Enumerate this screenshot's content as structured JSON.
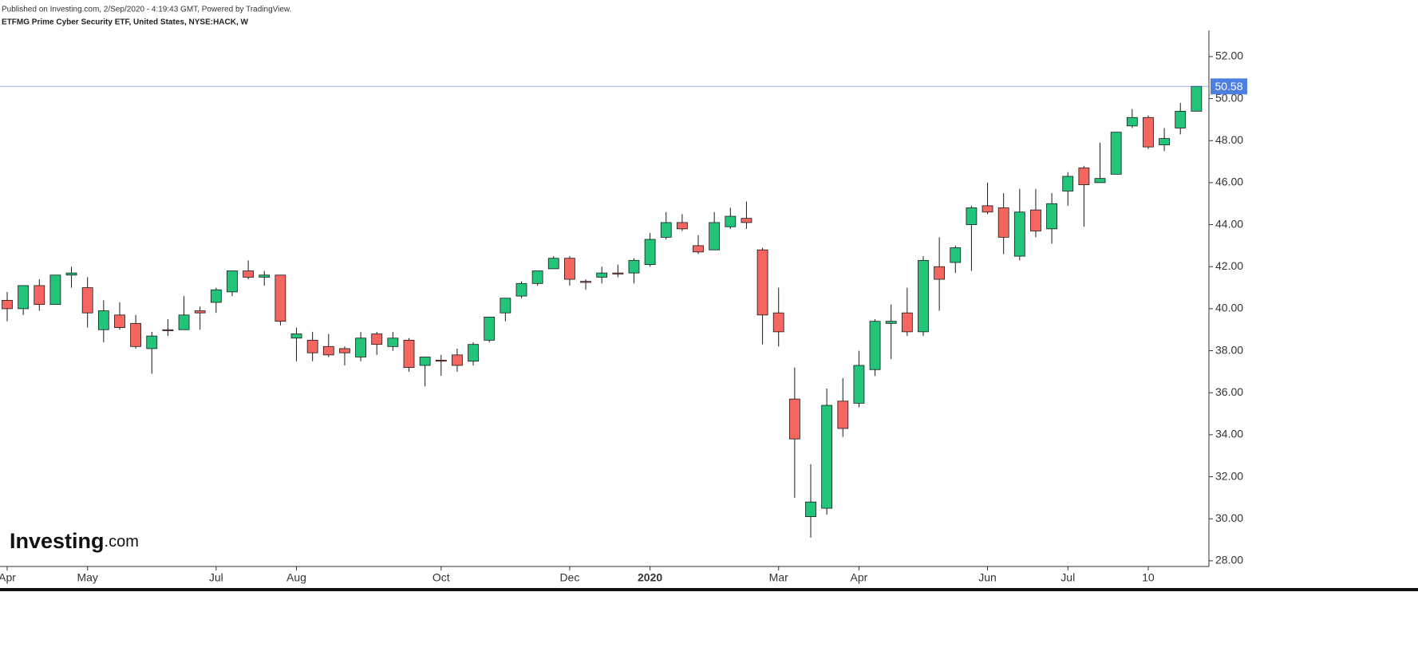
{
  "header": {
    "published": "Published on Investing.com, 2/Sep/2020 - 4:19:43 GMT, Powered by TradingView.",
    "symbol": "ETFMG Prime Cyber Security ETF, United States, NYSE:HACK, W"
  },
  "logo": {
    "name": "Investing",
    "suffix": ".com"
  },
  "chart_data": {
    "type": "candlestick",
    "categories": [
      "Apr",
      null,
      null,
      null,
      null,
      "May",
      null,
      null,
      null,
      null,
      null,
      null,
      null,
      "Jul",
      null,
      null,
      null,
      null,
      "Aug",
      null,
      null,
      null,
      null,
      null,
      null,
      null,
      null,
      "Oct",
      null,
      null,
      null,
      null,
      null,
      null,
      null,
      "Dec",
      null,
      null,
      null,
      null,
      "2020",
      null,
      null,
      null,
      null,
      null,
      null,
      null,
      "Mar",
      null,
      null,
      null,
      null,
      "Apr",
      null,
      null,
      null,
      null,
      null,
      null,
      null,
      "Jun",
      null,
      null,
      null,
      null,
      "Jul",
      null,
      null,
      null,
      null,
      "10",
      null,
      null,
      null
    ],
    "open": [
      40.4,
      40.0,
      41.1,
      40.2,
      41.6,
      41.0,
      39.0,
      39.7,
      39.3,
      38.1,
      39.0,
      39.0,
      39.9,
      40.3,
      40.8,
      41.8,
      41.5,
      41.6,
      38.6,
      38.5,
      38.2,
      38.1,
      37.7,
      38.8,
      38.2,
      38.5,
      37.3,
      37.55,
      37.8,
      37.5,
      38.5,
      39.8,
      40.6,
      41.2,
      41.9,
      42.4,
      41.3,
      41.5,
      41.7,
      41.7,
      42.1,
      43.4,
      44.1,
      43.0,
      42.8,
      43.9,
      44.3,
      42.8,
      39.8,
      35.7,
      30.1,
      30.5,
      35.6,
      35.5,
      37.1,
      39.3,
      39.8,
      38.9,
      42.0,
      42.2,
      44.0,
      44.9,
      44.8,
      42.5,
      44.7,
      43.8,
      45.6,
      46.7,
      46.0,
      46.4,
      48.7,
      49.1,
      47.8,
      48.6,
      49.4
    ],
    "high": [
      40.8,
      41.1,
      41.4,
      41.6,
      42.0,
      41.5,
      40.4,
      40.3,
      39.7,
      38.9,
      39.5,
      40.6,
      40.1,
      41.0,
      41.8,
      42.3,
      41.8,
      41.6,
      39.1,
      38.9,
      38.8,
      38.2,
      38.9,
      38.9,
      38.9,
      38.6,
      37.7,
      37.8,
      38.1,
      38.4,
      39.6,
      40.5,
      41.3,
      41.8,
      42.5,
      42.5,
      41.4,
      42.0,
      42.1,
      42.4,
      43.6,
      44.6,
      44.5,
      43.5,
      44.6,
      44.8,
      45.1,
      42.9,
      41.0,
      37.2,
      32.6,
      36.2,
      36.7,
      38.0,
      39.5,
      40.2,
      41.0,
      42.5,
      43.4,
      43.0,
      44.9,
      46.0,
      45.5,
      45.7,
      45.7,
      45.5,
      46.5,
      46.8,
      47.9,
      48.4,
      49.5,
      49.2,
      48.6,
      49.8,
      50.6
    ],
    "low": [
      39.4,
      39.7,
      39.9,
      40.2,
      41.0,
      39.1,
      38.4,
      39.0,
      38.1,
      36.9,
      38.7,
      39.0,
      39.0,
      39.8,
      40.6,
      41.4,
      41.1,
      39.2,
      37.5,
      37.5,
      37.7,
      37.3,
      37.5,
      37.8,
      38.0,
      37.0,
      36.3,
      36.8,
      37.0,
      37.3,
      38.4,
      39.4,
      40.5,
      41.1,
      41.9,
      41.1,
      40.9,
      41.2,
      41.5,
      41.2,
      42.0,
      43.3,
      43.7,
      42.6,
      42.8,
      43.8,
      43.8,
      38.3,
      38.2,
      31.0,
      29.1,
      30.2,
      33.9,
      35.3,
      36.8,
      37.6,
      38.7,
      38.7,
      39.9,
      41.7,
      41.8,
      44.5,
      42.6,
      42.3,
      43.4,
      43.1,
      44.9,
      43.9,
      46.0,
      46.4,
      48.6,
      47.6,
      47.5,
      48.3,
      49.4
    ],
    "close": [
      40.0,
      41.1,
      40.2,
      41.6,
      41.7,
      39.8,
      39.9,
      39.1,
      38.2,
      38.7,
      38.95,
      39.7,
      39.8,
      40.9,
      41.8,
      41.5,
      41.6,
      39.4,
      38.8,
      37.9,
      37.8,
      37.9,
      38.6,
      38.3,
      38.6,
      37.2,
      37.7,
      37.5,
      37.3,
      38.3,
      39.6,
      40.5,
      41.2,
      41.8,
      42.4,
      41.4,
      41.25,
      41.7,
      41.65,
      42.3,
      43.3,
      44.1,
      43.8,
      42.7,
      44.1,
      44.4,
      44.1,
      39.7,
      38.9,
      33.8,
      30.8,
      35.4,
      34.3,
      37.3,
      39.4,
      39.4,
      38.9,
      42.3,
      41.4,
      42.9,
      44.8,
      44.6,
      43.4,
      44.6,
      43.7,
      45.0,
      46.3,
      45.9,
      46.2,
      48.4,
      49.1,
      47.7,
      48.1,
      49.4,
      50.58
    ],
    "up_color": "#22c47a",
    "down_color": "#f4665f",
    "last_price_color": "#4d7fe3",
    "ylim": [
      27.73,
      53.25
    ],
    "yticks": [
      {
        "value": 28,
        "label": "28.00"
      },
      {
        "value": 30,
        "label": "30.00"
      },
      {
        "value": 32,
        "label": "32.00"
      },
      {
        "value": 34,
        "label": "34.00"
      },
      {
        "value": 36,
        "label": "36.00"
      },
      {
        "value": 38,
        "label": "38.00"
      },
      {
        "value": 40,
        "label": "40.00"
      },
      {
        "value": 42,
        "label": "42.00"
      },
      {
        "value": 44,
        "label": "44.00"
      },
      {
        "value": 46,
        "label": "46.00"
      },
      {
        "value": 48,
        "label": "48.00"
      },
      {
        "value": 50,
        "label": "50.00"
      },
      {
        "value": 52,
        "label": "52.00"
      }
    ],
    "grid": false
  }
}
